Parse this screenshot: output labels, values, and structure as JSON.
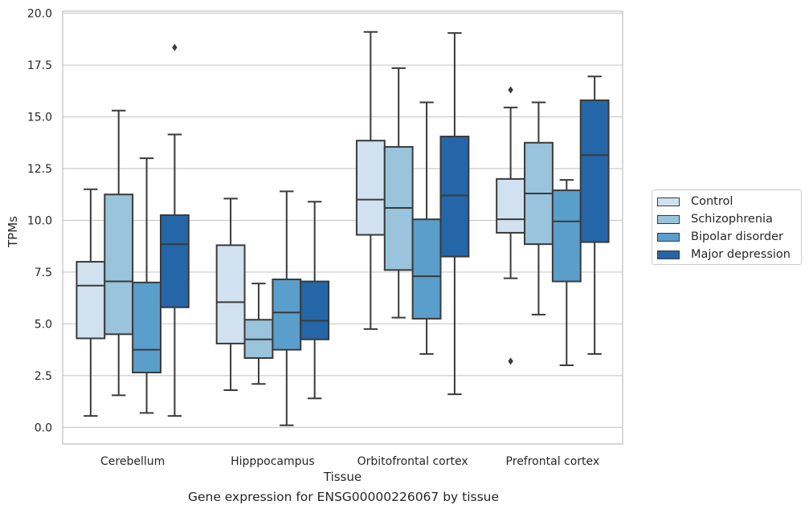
{
  "caption": "Gene expression for ENSG00000226067 by tissue",
  "chart_data": {
    "type": "boxplot",
    "xlabel": "Tissue",
    "ylabel": "TPMs",
    "ylim": [
      -0.8,
      20.1
    ],
    "yticks": [
      "0.0",
      "2.5",
      "5.0",
      "7.5",
      "10.0",
      "12.5",
      "15.0",
      "17.5",
      "20.0"
    ],
    "grid": "horizontal",
    "legend_position": "outside-right",
    "categories": [
      "Cerebellum",
      "Hipppocampus",
      "Orbitofrontal cortex",
      "Prefrontal cortex"
    ],
    "series": [
      {
        "name": "Control",
        "color": "#d1e1f0",
        "boxes": [
          {
            "whislo": 0.55,
            "q1": 4.3,
            "med": 6.85,
            "q3": 8.0,
            "whishi": 11.5,
            "fliers": []
          },
          {
            "whislo": 1.8,
            "q1": 4.05,
            "med": 6.05,
            "q3": 8.8,
            "whishi": 11.05,
            "fliers": []
          },
          {
            "whislo": 4.75,
            "q1": 9.3,
            "med": 11.0,
            "q3": 13.85,
            "whishi": 19.1,
            "fliers": []
          },
          {
            "whislo": 7.2,
            "q1": 9.4,
            "med": 10.05,
            "q3": 12.0,
            "whishi": 15.45,
            "fliers": [
              16.3,
              3.2
            ]
          }
        ]
      },
      {
        "name": "Schizophrenia",
        "color": "#9ac3dc",
        "boxes": [
          {
            "whislo": 1.55,
            "q1": 4.5,
            "med": 7.05,
            "q3": 11.25,
            "whishi": 15.3,
            "fliers": []
          },
          {
            "whislo": 2.1,
            "q1": 3.35,
            "med": 4.25,
            "q3": 5.2,
            "whishi": 6.95,
            "fliers": []
          },
          {
            "whislo": 5.3,
            "q1": 7.6,
            "med": 10.6,
            "q3": 13.55,
            "whishi": 17.35,
            "fliers": []
          },
          {
            "whislo": 5.45,
            "q1": 8.85,
            "med": 11.3,
            "q3": 13.75,
            "whishi": 15.7,
            "fliers": []
          }
        ]
      },
      {
        "name": "Bipolar disorder",
        "color": "#5a9ecb",
        "boxes": [
          {
            "whislo": 0.7,
            "q1": 2.65,
            "med": 3.75,
            "q3": 7.0,
            "whishi": 13.0,
            "fliers": []
          },
          {
            "whislo": 0.1,
            "q1": 3.75,
            "med": 5.55,
            "q3": 7.15,
            "whishi": 11.4,
            "fliers": []
          },
          {
            "whislo": 3.55,
            "q1": 5.25,
            "med": 7.3,
            "q3": 10.05,
            "whishi": 15.7,
            "fliers": []
          },
          {
            "whislo": 3.0,
            "q1": 7.05,
            "med": 9.95,
            "q3": 11.45,
            "whishi": 11.95,
            "fliers": []
          }
        ]
      },
      {
        "name": "Major depression",
        "color": "#2566a8",
        "boxes": [
          {
            "whislo": 0.55,
            "q1": 5.8,
            "med": 8.85,
            "q3": 10.25,
            "whishi": 14.15,
            "fliers": [
              18.35
            ]
          },
          {
            "whislo": 1.4,
            "q1": 4.25,
            "med": 5.15,
            "q3": 7.05,
            "whishi": 10.9,
            "fliers": []
          },
          {
            "whislo": 1.6,
            "q1": 8.25,
            "med": 11.2,
            "q3": 14.05,
            "whishi": 19.05,
            "fliers": []
          },
          {
            "whislo": 3.55,
            "q1": 8.95,
            "med": 13.15,
            "q3": 15.8,
            "whishi": 16.95,
            "fliers": []
          }
        ]
      }
    ]
  }
}
